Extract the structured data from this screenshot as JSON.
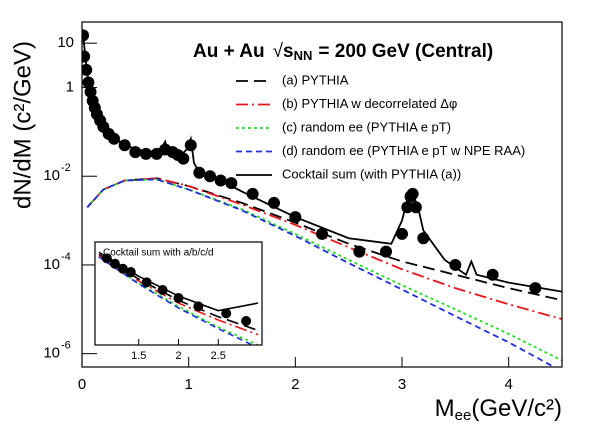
{
  "chart_data": [
    {
      "type": "line",
      "title": [
        "Au + Au",
        "s",
        "NN",
        "= 200 GeV (Central)"
      ],
      "xlabel": [
        "M",
        "ee",
        "(GeV/c²)"
      ],
      "ylabel": "dN/dM (c²/GeV)",
      "xlim": [
        0,
        4.5
      ],
      "xticks": [
        0,
        1,
        2,
        3,
        4
      ],
      "ylim": [
        5e-07,
        30
      ],
      "log_y": true,
      "yticks": [
        10,
        1,
        {
          "value": 0.01,
          "label": "10",
          "exponent": "-2"
        },
        {
          "value": 0.0001,
          "label": "10",
          "exponent": "-4"
        },
        {
          "value": 1e-06,
          "label": "10",
          "exponent": "-6"
        }
      ],
      "x": [
        0.05,
        0.2,
        0.4,
        0.7,
        1.0,
        1.5,
        2.0,
        2.5,
        3.0,
        3.5,
        4.0,
        4.5
      ],
      "series": [
        {
          "name": "(a) PYTHIA",
          "color": "#000000",
          "style": "dashed",
          "values": [
            0.002,
            0.005,
            0.008,
            0.009,
            0.006,
            0.0025,
            0.0009,
            0.0003,
            0.00012,
            6e-05,
            3e-05,
            1.6e-05
          ]
        },
        {
          "name": "(b) PYTHIA w decorrelated Δφ",
          "color": "#e8141c",
          "style": "dashdot",
          "values": [
            0.002,
            0.005,
            0.008,
            0.009,
            0.006,
            0.0023,
            0.0008,
            0.00025,
            8e-05,
            3e-05,
            1.3e-05,
            6e-06
          ]
        },
        {
          "name": "(c) random ee (PYTHIA e pT)",
          "color": "#22dd22",
          "style": "dotted",
          "values": [
            0.002,
            0.005,
            0.008,
            0.0085,
            0.005,
            0.0018,
            0.0005,
            0.00013,
            3.5e-05,
            1e-05,
            2.8e-06,
            7e-07
          ]
        },
        {
          "name": "(d) random ee (PYTHIA e pT w NPE RAA)",
          "color": "#1f2ee0",
          "style": "shortdash",
          "values": [
            0.002,
            0.005,
            0.008,
            0.0085,
            0.005,
            0.0017,
            0.00045,
            0.00011,
            2.8e-05,
            7e-06,
            1.8e-06,
            4e-07
          ]
        },
        {
          "name": "Cocktail sum (with PYTHIA (a))",
          "color": "#000000",
          "style": "solid",
          "x": [
            0.01,
            0.05,
            0.1,
            0.2,
            0.3,
            0.5,
            0.7,
            0.76,
            0.78,
            0.8,
            0.9,
            0.98,
            1.02,
            1.05,
            1.1,
            1.3,
            1.5,
            2.0,
            2.5,
            2.9,
            3.0,
            3.05,
            3.1,
            3.15,
            3.2,
            3.4,
            3.6,
            3.65,
            3.7,
            4.0,
            4.5
          ],
          "values": [
            15,
            2,
            0.5,
            0.13,
            0.07,
            0.04,
            0.035,
            0.05,
            0.06,
            0.035,
            0.025,
            0.04,
            0.07,
            0.02,
            0.012,
            0.008,
            0.0045,
            0.0012,
            0.0004,
            0.0003,
            0.001,
            0.003,
            0.004,
            0.002,
            0.0006,
            0.00013,
            6e-05,
            0.00012,
            6e-05,
            4e-05,
            2.5e-05
          ]
        },
        {
          "color": "#000000",
          "style": "points",
          "x": [
            0.01,
            0.02,
            0.04,
            0.06,
            0.08,
            0.1,
            0.12,
            0.14,
            0.17,
            0.2,
            0.25,
            0.3,
            0.4,
            0.5,
            0.6,
            0.7,
            0.78,
            0.85,
            0.9,
            0.95,
            1.02,
            1.1,
            1.2,
            1.3,
            1.4,
            1.6,
            1.8,
            2.0,
            2.25,
            2.6,
            2.85,
            3.0,
            3.05,
            3.08,
            3.1,
            3.13,
            3.2,
            3.5,
            3.85,
            4.25
          ],
          "values": [
            15,
            5,
            2.5,
            1.3,
            0.8,
            0.5,
            0.35,
            0.25,
            0.18,
            0.13,
            0.09,
            0.07,
            0.05,
            0.035,
            0.032,
            0.032,
            0.04,
            0.035,
            0.03,
            0.025,
            0.05,
            0.012,
            0.01,
            0.008,
            0.007,
            0.004,
            0.0025,
            0.0012,
            0.0005,
            0.0002,
            0.0002,
            0.0005,
            0.002,
            0.0035,
            0.004,
            0.002,
            0.0004,
            0.0001,
            6e-05,
            3e-05
          ]
        }
      ]
    },
    {
      "type": "line",
      "title": "Cocktail sum with a/b/c/d",
      "xlim": [
        0.95,
        3.05
      ],
      "xticks": [
        1.5,
        2,
        2.5
      ],
      "ylim": [
        3e-06,
        0.003
      ],
      "log_y": true,
      "x": [
        1.0,
        1.5,
        2.0,
        2.5,
        3.0
      ],
      "series": [
        {
          "color": "#000000",
          "style": "solid",
          "values": [
            0.0015,
            0.0003,
            8e-05,
            3e-05,
            5e-05
          ]
        },
        {
          "color": "#000000",
          "style": "dashed",
          "values": [
            0.0013,
            0.00025,
            6e-05,
            2e-05,
            8e-06
          ]
        },
        {
          "color": "#e8141c",
          "style": "dashdot",
          "values": [
            0.0012,
            0.00022,
            5e-05,
            1.6e-05,
            6e-06
          ]
        },
        {
          "color": "#22dd22",
          "style": "dotted",
          "values": [
            0.0011,
            0.00019,
            4e-05,
            1e-05,
            3e-06
          ]
        },
        {
          "color": "#1f2ee0",
          "style": "shortdash",
          "values": [
            0.0011,
            0.00018,
            3.6e-05,
            9e-06,
            2.5e-06
          ]
        },
        {
          "color": "#000000",
          "style": "points",
          "x": [
            1.1,
            1.2,
            1.3,
            1.4,
            1.6,
            1.8,
            2.0,
            2.25,
            2.6,
            2.85
          ],
          "values": [
            0.001,
            0.0007,
            0.0005,
            0.0004,
            0.0002,
            0.00012,
            7e-05,
            4e-05,
            2.5e-05,
            1.5e-05
          ]
        }
      ]
    }
  ]
}
